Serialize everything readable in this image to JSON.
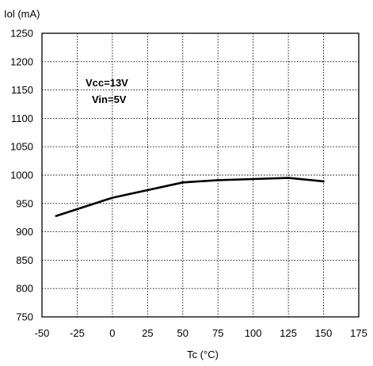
{
  "chart_data": {
    "type": "line",
    "title": "",
    "ylabel": "Iol (mA)",
    "xlabel": "Tc (°C)",
    "xlim": [
      -50,
      175
    ],
    "ylim": [
      750,
      1250
    ],
    "x_ticks": [
      -50,
      -25,
      0,
      25,
      50,
      75,
      100,
      125,
      150,
      175
    ],
    "y_ticks": [
      750,
      800,
      850,
      900,
      950,
      1000,
      1050,
      1100,
      1150,
      1200,
      1250
    ],
    "grid": true,
    "annotations": [
      "Vcc=13V",
      "Vin=5V"
    ],
    "series": [
      {
        "x": [
          -40,
          0,
          50,
          75,
          100,
          125,
          150
        ],
        "y": [
          928,
          960,
          987,
          991,
          993,
          995,
          989
        ]
      }
    ]
  }
}
